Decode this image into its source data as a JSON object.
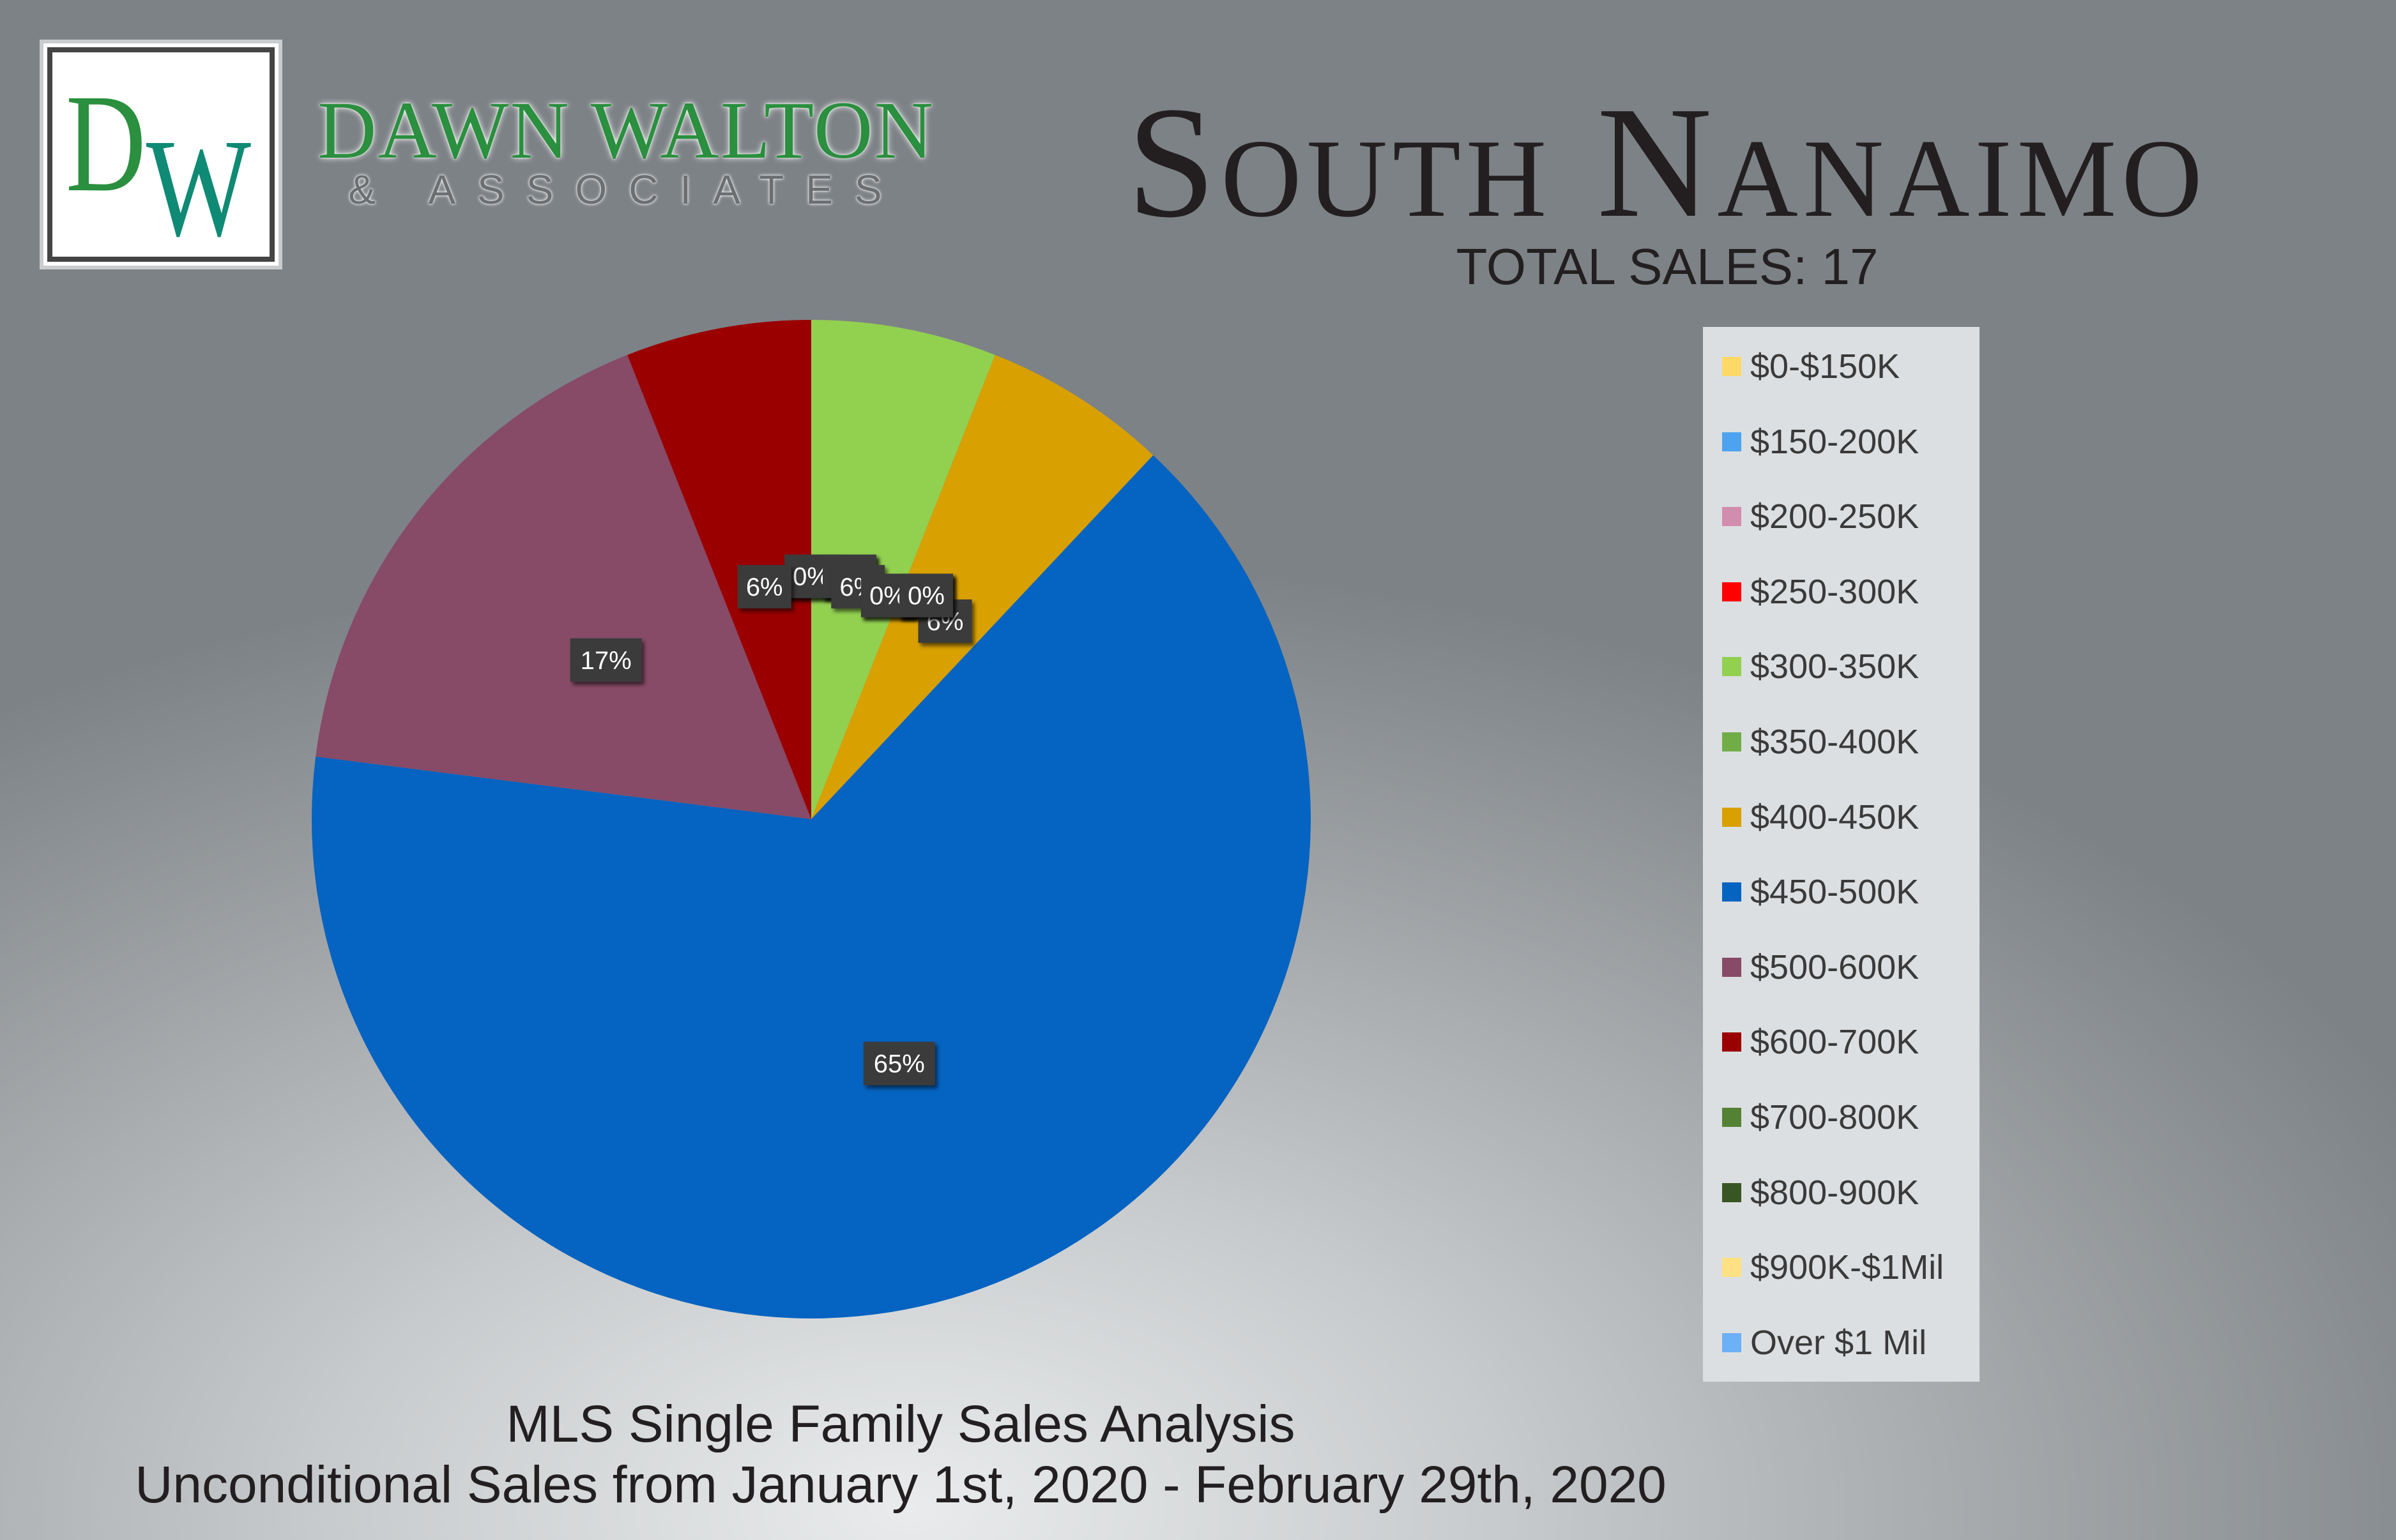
{
  "brand": {
    "logo_letters": "DW",
    "name": "DAWN WALTON",
    "subtitle": "& ASSOCIATES"
  },
  "title": "South Nanaimo",
  "total_sales_text": "TOTAL SALES: 17",
  "footer": {
    "line1": "MLS Single Family Sales Analysis",
    "line2": "Unconditional Sales from January 1st, 2020 - February 29th, 2020"
  },
  "chart_data": {
    "type": "pie",
    "title": "",
    "categories": [
      "$0-$150K",
      "$150-200K",
      "$200-250K",
      "$250-300K",
      "$300-350K",
      "$350-400K",
      "$400-450K",
      "$450-500K",
      "$500-600K",
      "$600-700K",
      "$700-800K",
      "$800-900K",
      "$900K-$1Mil",
      "Over $1 Mil"
    ],
    "values": [
      0,
      0,
      0,
      0,
      6,
      0,
      6,
      65,
      17,
      6,
      0,
      0,
      0,
      0
    ],
    "data_labels": [
      "0%",
      "0%",
      "0%",
      "0%",
      "6%",
      "0%",
      "6%",
      "65%",
      "17%",
      "6%",
      "0%",
      "0%",
      "0%",
      "0%"
    ],
    "colors": [
      "#ffd966",
      "#4da3f0",
      "#d18cae",
      "#ff0000",
      "#92d050",
      "#70ad47",
      "#d8a000",
      "#0563c1",
      "#874a67",
      "#9a0000",
      "#548235",
      "#375623",
      "#ffe082",
      "#6cb0f5"
    ],
    "legend_position": "right"
  }
}
